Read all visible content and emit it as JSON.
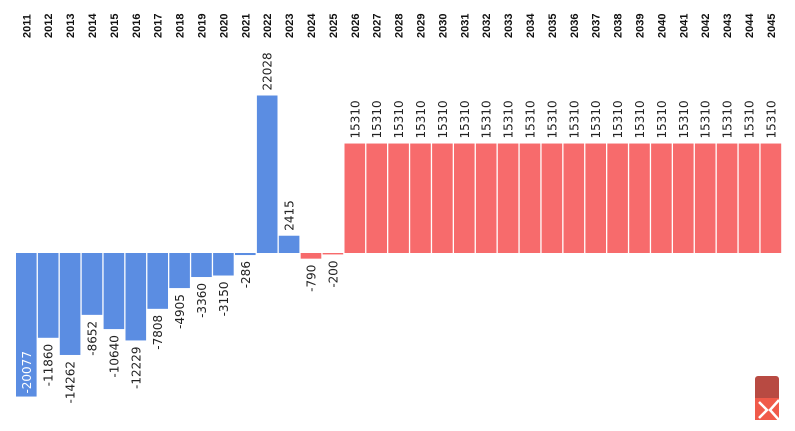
{
  "chart_data": {
    "type": "bar",
    "title": "",
    "xlabel": "",
    "ylabel": "",
    "categories": [
      "2011",
      "2012",
      "2013",
      "2014",
      "2015",
      "2016",
      "2017",
      "2018",
      "2019",
      "2020",
      "2021",
      "2022",
      "2023",
      "2024",
      "2025",
      "2026",
      "2027",
      "2028",
      "2029",
      "2030",
      "2031",
      "2032",
      "2033",
      "2034",
      "2035",
      "2036",
      "2037",
      "2038",
      "2039",
      "2040",
      "2041",
      "2042",
      "2043",
      "2044",
      "2045"
    ],
    "values": [
      -20077,
      -11860,
      -14262,
      -8652,
      -10640,
      -12229,
      -7808,
      -4905,
      -3360,
      -3150,
      -286,
      22028,
      2415,
      -790,
      -200,
      15310,
      15310,
      15310,
      15310,
      15310,
      15310,
      15310,
      15310,
      15310,
      15310,
      15310,
      15310,
      15310,
      15310,
      15310,
      15310,
      15310,
      15310,
      15310,
      15310
    ],
    "value_labels": [
      "-20077",
      "-11860",
      "-14262",
      "-8652",
      "-10640",
      "-12229",
      "-7808",
      "-4905",
      "-3360",
      "-3150",
      "-286",
      "22028",
      "2415",
      "-790",
      "-200",
      "15310",
      "15310",
      "15310",
      "15310",
      "15310",
      "15310",
      "15310",
      "15310",
      "15310",
      "15310",
      "15310",
      "15310",
      "15310",
      "15310",
      "15310",
      "15310",
      "15310",
      "15310",
      "15310",
      "15310"
    ],
    "ylim": [
      -20077,
      22028
    ],
    "colors": {
      "actual": "#5b8de2",
      "projected": "#f76b6c",
      "logo": "#b84a42"
    },
    "projected_from_index": 13,
    "grid": false,
    "legend": "none"
  },
  "logo": {
    "icon": "brand-logo-icon"
  }
}
